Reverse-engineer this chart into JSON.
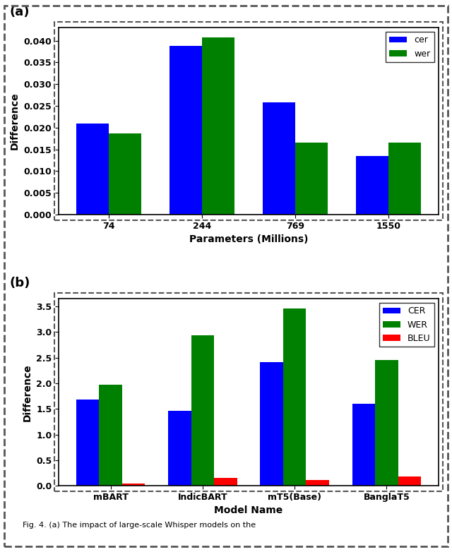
{
  "chart_a": {
    "title": "(a)",
    "categories": [
      "74",
      "244",
      "769",
      "1550"
    ],
    "cer_values": [
      0.021,
      0.0388,
      0.0258,
      0.0134
    ],
    "wer_values": [
      0.0187,
      0.0408,
      0.0165,
      0.0165
    ],
    "xlabel": "Parameters (Millions)",
    "ylabel": "Difference",
    "ylim": [
      0,
      0.043
    ],
    "yticks": [
      0.0,
      0.005,
      0.01,
      0.015,
      0.02,
      0.025,
      0.03,
      0.035,
      0.04
    ],
    "legend_labels": [
      "cer",
      "wer"
    ],
    "bar_colors": [
      "#0000FF",
      "#008000"
    ]
  },
  "chart_b": {
    "title": "(b)",
    "categories": [
      "mBART",
      "IndicBART",
      "mT5(Base)",
      "BanglaT5"
    ],
    "cer_values": [
      1.68,
      1.46,
      2.42,
      1.6
    ],
    "wer_values": [
      1.97,
      2.93,
      3.46,
      2.45
    ],
    "bleu_values": [
      0.04,
      0.155,
      0.115,
      0.185
    ],
    "xlabel": "Model Name",
    "ylabel": "Difference",
    "ylim": [
      0,
      3.65
    ],
    "yticks": [
      0.0,
      0.5,
      1.0,
      1.5,
      2.0,
      2.5,
      3.0,
      3.5
    ],
    "legend_labels": [
      "CER",
      "WER",
      "BLEU"
    ],
    "bar_colors": [
      "#0000FF",
      "#008000",
      "#FF0000"
    ]
  },
  "caption": "Fig. 4. (a) The impact of large-scale Whisper models on the",
  "figure_bgcolor": "#ffffff"
}
